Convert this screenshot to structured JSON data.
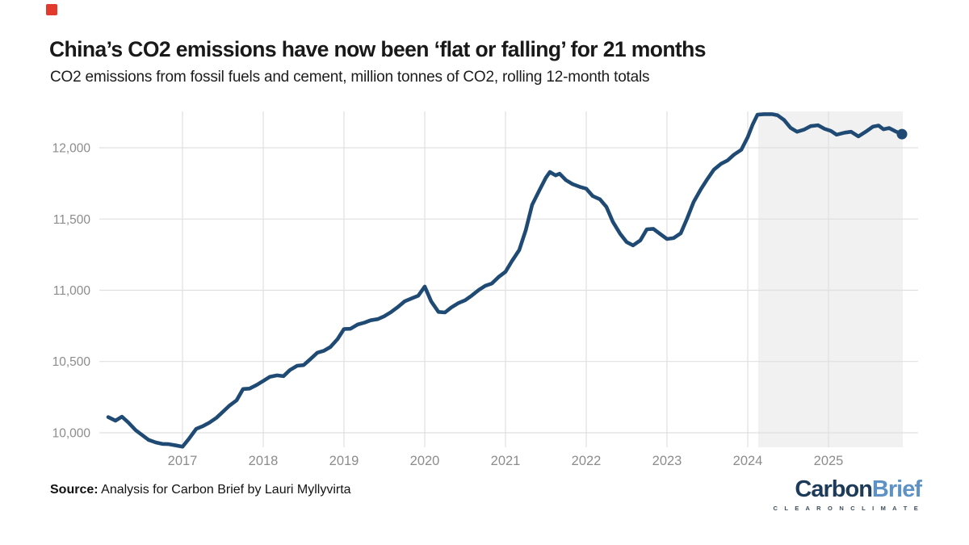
{
  "page": {
    "background": "#ffffff"
  },
  "marker": {
    "color": "#e23b2e"
  },
  "header": {
    "title": "China’s CO2 emissions have now been ‘flat or falling’ for 21 months",
    "subtitle": "CO2 emissions from fossil fuels and cement, million tonnes of CO2, rolling 12-month totals"
  },
  "footer": {
    "source_label": "Source:",
    "source_text": " Analysis for Carbon Brief by Lauri Myllyvirta",
    "logo": {
      "part1": "Carbon",
      "part2": "Brief",
      "tagline": "C L E A R   O N   C L I M A T E",
      "color1": "#1d3b59",
      "color2": "#5e92c4",
      "tagline_color": "#3f4e5c"
    }
  },
  "chart_data": {
    "type": "line",
    "title": "China’s CO2 emissions have now been ‘flat or falling’ for 21 months",
    "subtitle": "CO2 emissions from fossil fuels and cement, million tonnes of CO2, rolling 12-month totals",
    "units": "million tonnes of CO2",
    "x_domain": [
      2015.97,
      2026.11
    ],
    "y_domain": [
      9898,
      12255
    ],
    "grid": true,
    "line_color": "#1f4a74",
    "grid_color": "#e0e0e0",
    "tick_color": "#8c8c8c",
    "shade": {
      "from": 2024.13,
      "to": 2025.92,
      "color": "#f1f1f1",
      "meaning": "21-month flat-or-falling period"
    },
    "x_axis": {
      "ticks": [
        {
          "value": 2017,
          "label": "2017"
        },
        {
          "value": 2018,
          "label": "2018"
        },
        {
          "value": 2019,
          "label": "2019"
        },
        {
          "value": 2020,
          "label": "2020"
        },
        {
          "value": 2021,
          "label": "2021"
        },
        {
          "value": 2022,
          "label": "2022"
        },
        {
          "value": 2023,
          "label": "2023"
        },
        {
          "value": 2024,
          "label": "2024"
        },
        {
          "value": 2025,
          "label": "2025"
        }
      ]
    },
    "y_axis": {
      "ticks": [
        {
          "value": 10000,
          "label": "10,000"
        },
        {
          "value": 10500,
          "label": "10,500"
        },
        {
          "value": 11000,
          "label": "11,000"
        },
        {
          "value": 11500,
          "label": "11,500"
        },
        {
          "value": 12000,
          "label": "12,000"
        }
      ]
    },
    "end_marker": true,
    "series": [
      {
        "name": "Rolling 12-month CO2 emissions",
        "points": [
          [
            2016.08,
            10110
          ],
          [
            2016.17,
            10085
          ],
          [
            2016.25,
            10113
          ],
          [
            2016.33,
            10072
          ],
          [
            2016.42,
            10018
          ],
          [
            2016.5,
            9984
          ],
          [
            2016.58,
            9950
          ],
          [
            2016.67,
            9932
          ],
          [
            2016.75,
            9922
          ],
          [
            2016.83,
            9920
          ],
          [
            2016.92,
            9911
          ],
          [
            2017.0,
            9902
          ],
          [
            2017.08,
            9958
          ],
          [
            2017.17,
            10028
          ],
          [
            2017.25,
            10046
          ],
          [
            2017.33,
            10070
          ],
          [
            2017.42,
            10105
          ],
          [
            2017.5,
            10147
          ],
          [
            2017.58,
            10190
          ],
          [
            2017.67,
            10228
          ],
          [
            2017.75,
            10307
          ],
          [
            2017.83,
            10310
          ],
          [
            2017.92,
            10336
          ],
          [
            2018.0,
            10364
          ],
          [
            2018.08,
            10392
          ],
          [
            2018.17,
            10403
          ],
          [
            2018.25,
            10397
          ],
          [
            2018.33,
            10440
          ],
          [
            2018.42,
            10470
          ],
          [
            2018.5,
            10475
          ],
          [
            2018.58,
            10515
          ],
          [
            2018.67,
            10562
          ],
          [
            2018.75,
            10575
          ],
          [
            2018.83,
            10601
          ],
          [
            2018.92,
            10657
          ],
          [
            2019.0,
            10728
          ],
          [
            2019.08,
            10730
          ],
          [
            2019.17,
            10760
          ],
          [
            2019.25,
            10772
          ],
          [
            2019.33,
            10789
          ],
          [
            2019.42,
            10798
          ],
          [
            2019.5,
            10818
          ],
          [
            2019.58,
            10846
          ],
          [
            2019.67,
            10884
          ],
          [
            2019.75,
            10922
          ],
          [
            2019.83,
            10941
          ],
          [
            2019.92,
            10962
          ],
          [
            2020.0,
            11026
          ],
          [
            2020.08,
            10922
          ],
          [
            2020.17,
            10848
          ],
          [
            2020.25,
            10844
          ],
          [
            2020.33,
            10880
          ],
          [
            2020.42,
            10911
          ],
          [
            2020.5,
            10930
          ],
          [
            2020.58,
            10962
          ],
          [
            2020.67,
            11002
          ],
          [
            2020.75,
            11032
          ],
          [
            2020.83,
            11047
          ],
          [
            2020.92,
            11096
          ],
          [
            2021.0,
            11130
          ],
          [
            2021.08,
            11205
          ],
          [
            2021.17,
            11282
          ],
          [
            2021.25,
            11420
          ],
          [
            2021.33,
            11600
          ],
          [
            2021.42,
            11702
          ],
          [
            2021.5,
            11790
          ],
          [
            2021.55,
            11830
          ],
          [
            2021.62,
            11806
          ],
          [
            2021.67,
            11818
          ],
          [
            2021.75,
            11772
          ],
          [
            2021.83,
            11745
          ],
          [
            2021.92,
            11726
          ],
          [
            2022.0,
            11713
          ],
          [
            2022.08,
            11661
          ],
          [
            2022.17,
            11638
          ],
          [
            2022.25,
            11585
          ],
          [
            2022.33,
            11480
          ],
          [
            2022.42,
            11396
          ],
          [
            2022.5,
            11338
          ],
          [
            2022.58,
            11315
          ],
          [
            2022.67,
            11350
          ],
          [
            2022.75,
            11428
          ],
          [
            2022.83,
            11431
          ],
          [
            2022.92,
            11393
          ],
          [
            2023.0,
            11360
          ],
          [
            2023.08,
            11366
          ],
          [
            2023.17,
            11400
          ],
          [
            2023.25,
            11505
          ],
          [
            2023.33,
            11620
          ],
          [
            2023.42,
            11710
          ],
          [
            2023.5,
            11780
          ],
          [
            2023.58,
            11846
          ],
          [
            2023.67,
            11888
          ],
          [
            2023.75,
            11911
          ],
          [
            2023.83,
            11952
          ],
          [
            2023.92,
            11986
          ],
          [
            2024.0,
            12075
          ],
          [
            2024.06,
            12162
          ],
          [
            2024.12,
            12232
          ],
          [
            2024.2,
            12236
          ],
          [
            2024.3,
            12236
          ],
          [
            2024.37,
            12228
          ],
          [
            2024.45,
            12195
          ],
          [
            2024.53,
            12140
          ],
          [
            2024.61,
            12112
          ],
          [
            2024.7,
            12128
          ],
          [
            2024.78,
            12152
          ],
          [
            2024.87,
            12158
          ],
          [
            2024.95,
            12133
          ],
          [
            2025.03,
            12118
          ],
          [
            2025.1,
            12092
          ],
          [
            2025.2,
            12106
          ],
          [
            2025.28,
            12112
          ],
          [
            2025.37,
            12080
          ],
          [
            2025.46,
            12112
          ],
          [
            2025.55,
            12148
          ],
          [
            2025.62,
            12156
          ],
          [
            2025.68,
            12130
          ],
          [
            2025.75,
            12138
          ],
          [
            2025.83,
            12115
          ],
          [
            2025.91,
            12096
          ]
        ]
      }
    ]
  }
}
